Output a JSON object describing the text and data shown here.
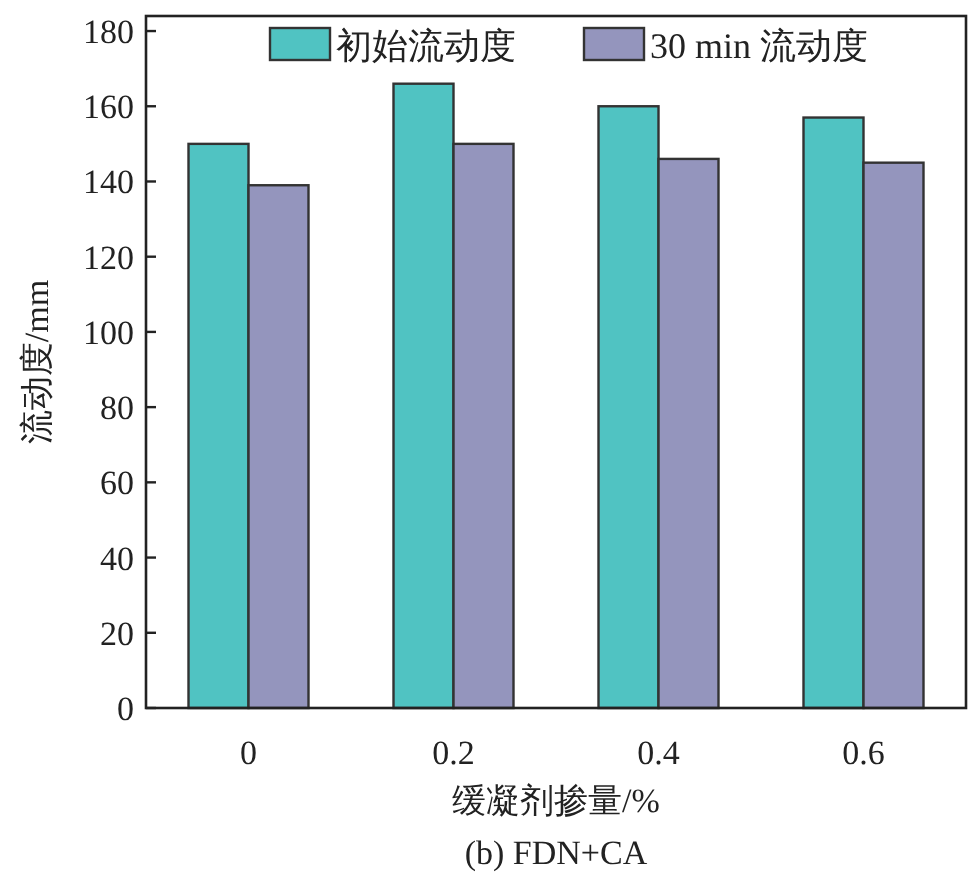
{
  "chart_data": {
    "type": "bar",
    "categories": [
      "0",
      "0.2",
      "0.4",
      "0.6"
    ],
    "series": [
      {
        "name": "初始流动度",
        "color": "#50c3c2",
        "values": [
          150,
          166,
          160,
          157
        ]
      },
      {
        "name": "30 min 流动度",
        "color": "#9495bd",
        "values": [
          139,
          150,
          146,
          145
        ]
      }
    ],
    "xlabel": "缓凝剂掺量/%",
    "ylabel": "流动度/mm",
    "annotations": [
      "(b) FDN+CA"
    ],
    "ylim": [
      0,
      184
    ],
    "yticks": [
      0,
      20,
      40,
      60,
      80,
      100,
      120,
      140,
      160,
      180
    ],
    "legend": "top",
    "grid": false
  }
}
